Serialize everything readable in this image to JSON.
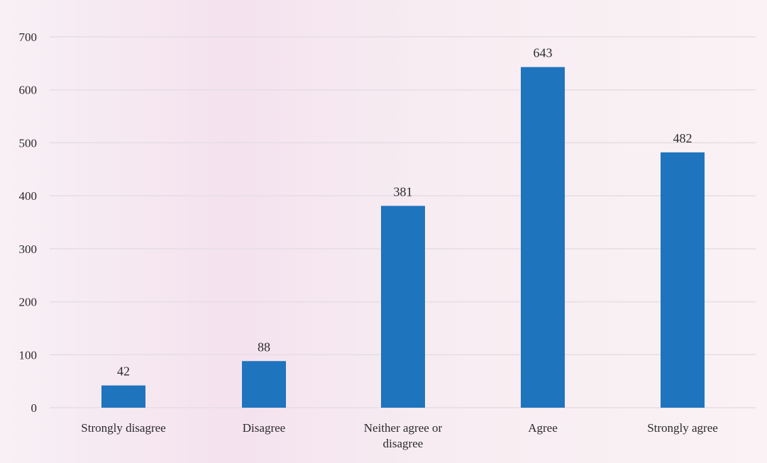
{
  "chart_data": {
    "type": "bar",
    "title": "",
    "xlabel": "",
    "ylabel": "",
    "categories": [
      "Strongly disagree",
      "Disagree",
      "Neither agree or disagree",
      "Agree",
      "Strongly agree"
    ],
    "values": [
      42,
      88,
      381,
      643,
      482
    ],
    "ylim": [
      0,
      700
    ],
    "yticks": [
      0,
      100,
      200,
      300,
      400,
      500,
      600,
      700
    ],
    "grid": true,
    "legend": "none",
    "bar_color": "#1f74be"
  }
}
